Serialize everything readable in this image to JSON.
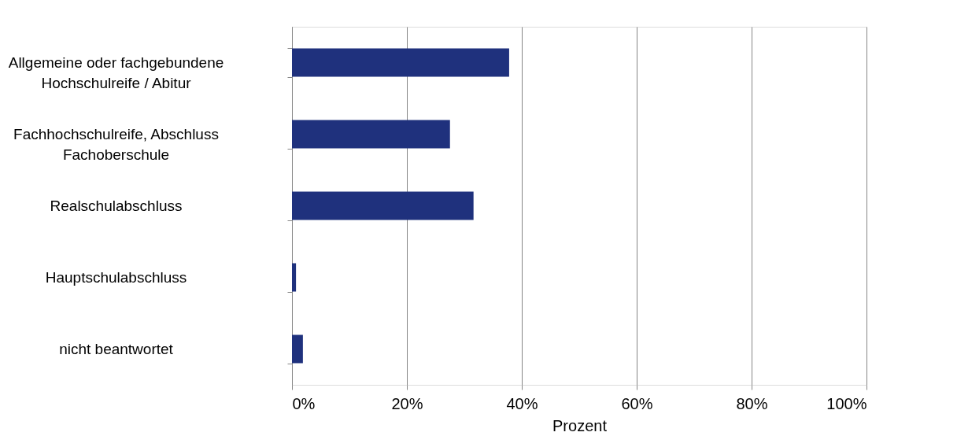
{
  "chart_data": {
    "type": "bar",
    "orientation": "horizontal",
    "xlabel": "Prozent",
    "categories": [
      "Allgemeine oder fachgebundene\nHochschulreife / Abitur",
      "Fachhochschulreife, Abschluss\nFachoberschule",
      "Realschulabschluss",
      "Hauptschulabschluss",
      "nicht beantwortet"
    ],
    "values": [
      37.8,
      27.5,
      31.6,
      0.7,
      1.9
    ],
    "color": "#1f317d",
    "xlim": [
      0,
      100
    ],
    "xticks": [
      {
        "value": 0,
        "label": "0%"
      },
      {
        "value": 20,
        "label": "20%"
      },
      {
        "value": 40,
        "label": "40%"
      },
      {
        "value": 60,
        "label": "60%"
      },
      {
        "value": 80,
        "label": "80%"
      },
      {
        "value": 100,
        "label": "100%"
      }
    ],
    "grid": "x"
  }
}
